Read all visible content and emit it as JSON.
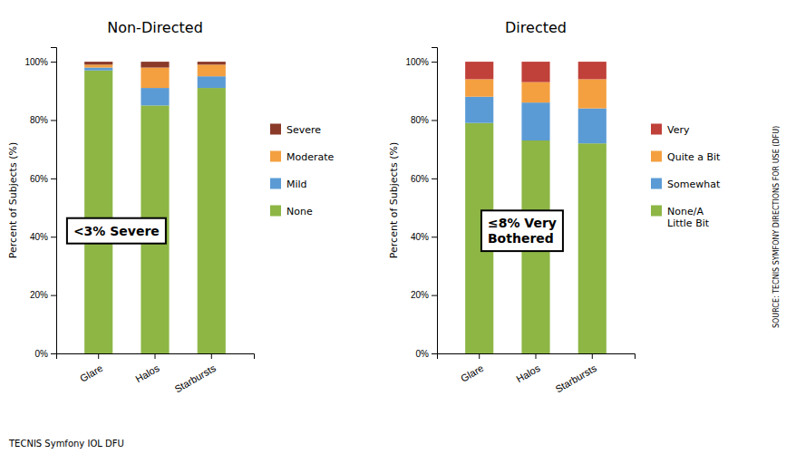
{
  "chart_data": [
    {
      "type": "bar",
      "stacked": true,
      "title": "Non-Directed",
      "y_label": "Percent of Subjects (%)",
      "categories": [
        "Glare",
        "Halos",
        "Starbursts"
      ],
      "series": [
        {
          "name": "None",
          "color": "#8db645",
          "values": [
            97,
            85,
            91
          ]
        },
        {
          "name": "Mild",
          "color": "#5b9bd5",
          "values": [
            1,
            6,
            4
          ]
        },
        {
          "name": "Moderate",
          "color": "#f4a040",
          "values": [
            1,
            7,
            4
          ]
        },
        {
          "name": "Severe",
          "color": "#8b3a2a",
          "values": [
            1,
            2,
            1
          ]
        }
      ],
      "ylim": [
        0,
        105
      ],
      "yticks": [
        {
          "value": 0,
          "label": "0%"
        },
        {
          "value": 20,
          "label": "20%"
        },
        {
          "value": 40,
          "label": "40%"
        },
        {
          "value": 60,
          "label": "60%"
        },
        {
          "value": 80,
          "label": "80%"
        },
        {
          "value": 100,
          "label": "100%"
        }
      ],
      "grid": false,
      "legend": "right",
      "annotation": "<3% Severe"
    },
    {
      "type": "bar",
      "stacked": true,
      "title": "Directed",
      "y_label": "Percent of Subjects (%)",
      "categories": [
        "Glare",
        "Halos",
        "Starbursts"
      ],
      "series": [
        {
          "name": "None/A\nLittle Bit",
          "color": "#8db645",
          "values": [
            79,
            73,
            72
          ]
        },
        {
          "name": "Somewhat",
          "color": "#5b9bd5",
          "values": [
            9,
            13,
            12
          ]
        },
        {
          "name": "Quite a Bit",
          "color": "#f4a040",
          "values": [
            6,
            7,
            10
          ]
        },
        {
          "name": "Very",
          "color": "#c0403a",
          "values": [
            6,
            7,
            6
          ]
        }
      ],
      "ylim": [
        0,
        105
      ],
      "yticks": [
        {
          "value": 0,
          "label": "0%"
        },
        {
          "value": 20,
          "label": "20%"
        },
        {
          "value": 40,
          "label": "40%"
        },
        {
          "value": 60,
          "label": "60%"
        },
        {
          "value": 80,
          "label": "80%"
        },
        {
          "value": 100,
          "label": "100%"
        }
      ],
      "grid": false,
      "legend": "right",
      "annotation": "≤8% Very\nBothered"
    }
  ],
  "source": "TECNIS Symfony IOL DFU",
  "side_note": "SOURCE: TECNIS SYMFONY DIRECTIONS FOR USE (DFU)"
}
